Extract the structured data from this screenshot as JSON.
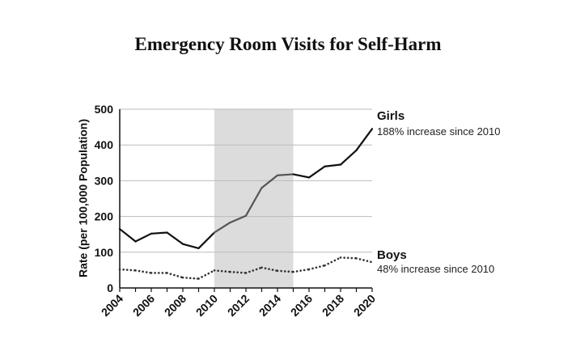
{
  "chart_data": {
    "type": "line",
    "title": "Emergency Room Visits for Self-Harm",
    "ylabel": "Rate (per 100,000 Population)",
    "xlabel": "",
    "ylim": [
      0,
      500
    ],
    "xlim": [
      2004,
      2020
    ],
    "yticks": [
      "0",
      "100",
      "200",
      "300",
      "400",
      "500"
    ],
    "xticks": [
      "2004",
      "2006",
      "2008",
      "2010",
      "2012",
      "2014",
      "2016",
      "2018",
      "2020"
    ],
    "x": [
      2004,
      2005,
      2006,
      2007,
      2008,
      2009,
      2010,
      2011,
      2012,
      2013,
      2014,
      2015,
      2016,
      2017,
      2018,
      2019,
      2020
    ],
    "highlight_range": [
      2010,
      2015
    ],
    "grid": "horizontal",
    "series": [
      {
        "name": "Girls",
        "annotation": "188% increase since 2010",
        "style": "solid",
        "values": [
          165,
          130,
          152,
          155,
          123,
          111,
          155,
          183,
          202,
          280,
          315,
          318,
          309,
          340,
          345,
          385,
          445
        ]
      },
      {
        "name": "Boys",
        "annotation": "48% increase since 2010",
        "style": "dotted",
        "values": [
          52,
          49,
          42,
          42,
          29,
          26,
          49,
          45,
          42,
          57,
          48,
          45,
          52,
          63,
          85,
          83,
          72
        ]
      }
    ],
    "colors": {
      "line_outside": "#111111",
      "line_highlight": "#555555",
      "highlight": "#dcdcdc",
      "grid": "#bbbbbb"
    }
  }
}
